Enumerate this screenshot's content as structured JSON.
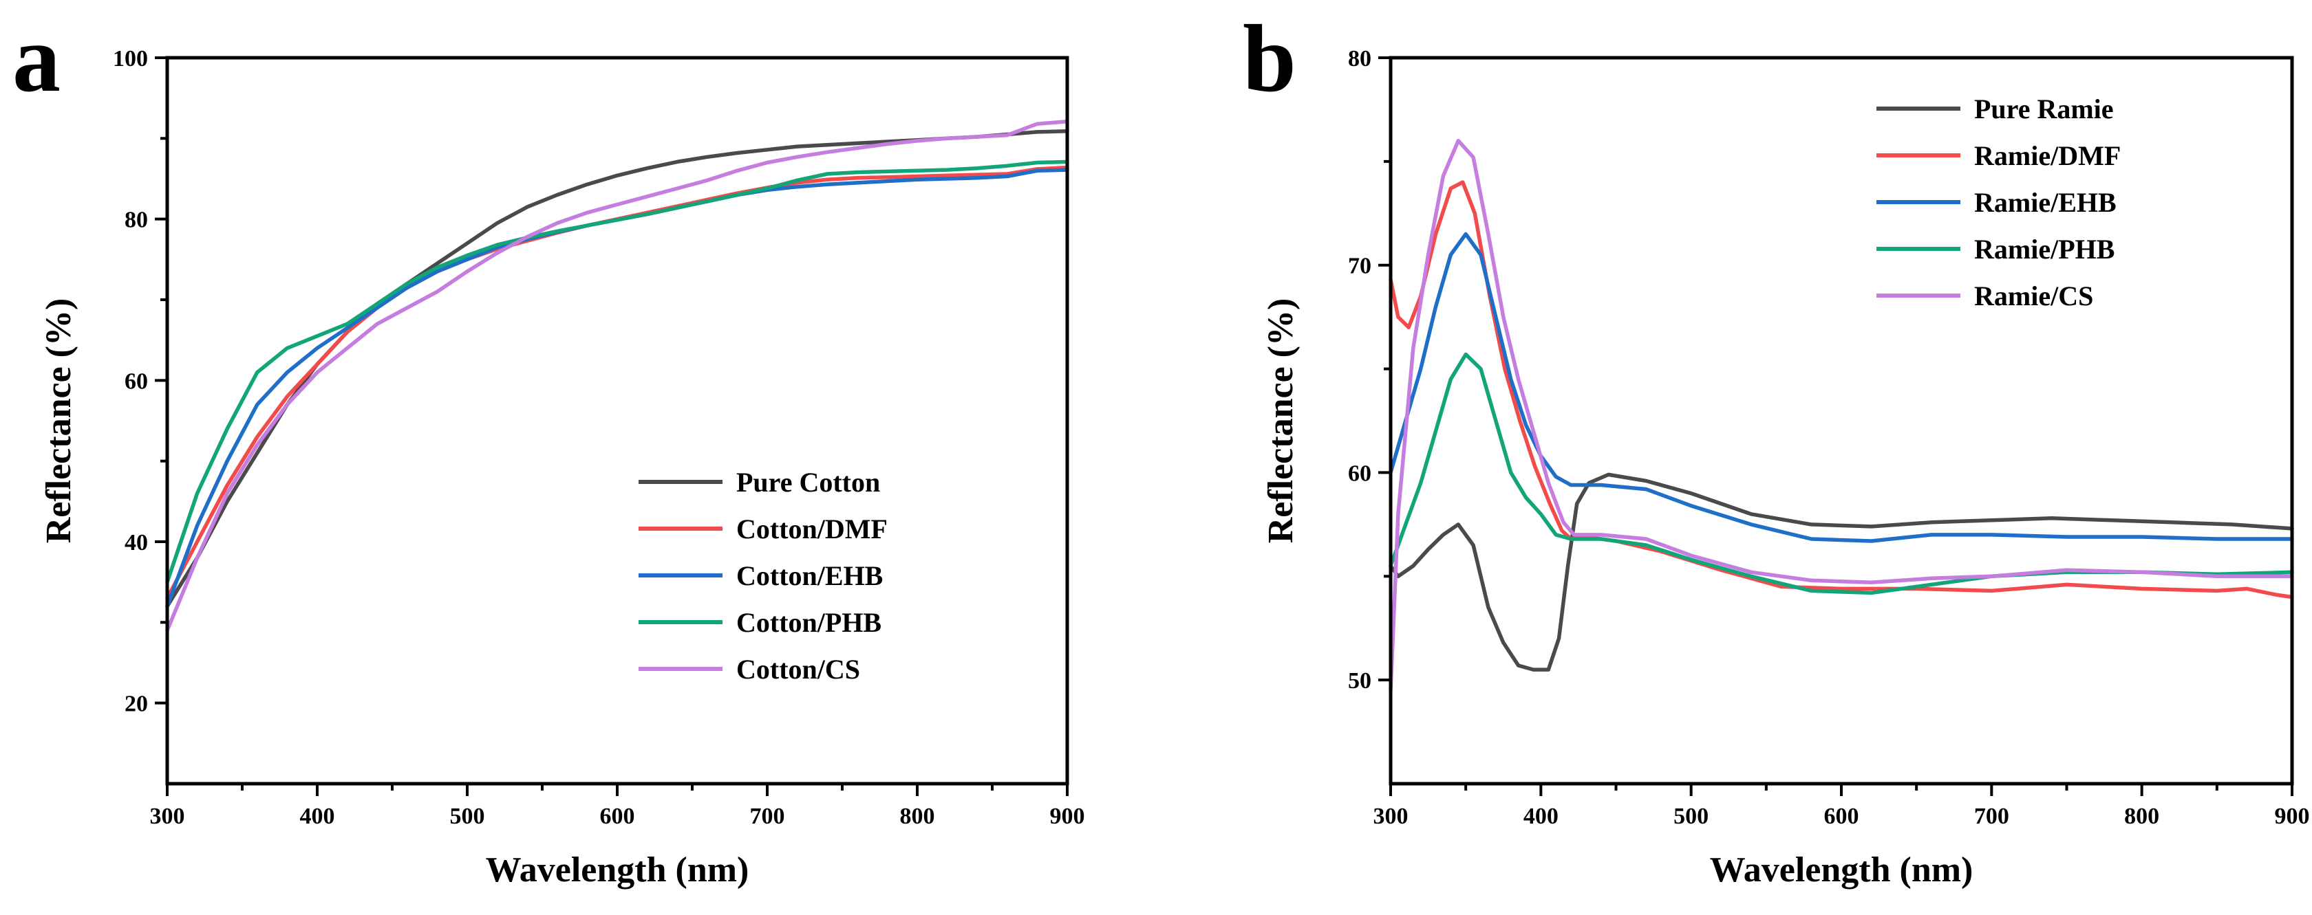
{
  "colors": {
    "gray": "#4a4a4a",
    "red": "#f14b4b",
    "blue": "#1f6fc9",
    "green": "#13a57a",
    "purple": "#c57de0"
  },
  "chart_data": [
    {
      "panel_label": "a",
      "type": "line",
      "xlabel": "Wavelength (nm)",
      "ylabel": "Reflectance (%)",
      "xlim": [
        300,
        900
      ],
      "ylim": [
        10,
        100
      ],
      "xticks": [
        "300",
        "400",
        "500",
        "600",
        "700",
        "800",
        "900"
      ],
      "yticks": [
        "20",
        "40",
        "60",
        "80",
        "100"
      ],
      "grid": false,
      "legend_position": "lower-right",
      "series": [
        {
          "name": "Pure Cotton",
          "color": "#4a4a4a",
          "x": [
            300,
            320,
            340,
            360,
            380,
            400,
            420,
            440,
            460,
            480,
            500,
            520,
            540,
            560,
            580,
            600,
            620,
            640,
            660,
            680,
            700,
            720,
            740,
            760,
            780,
            800,
            820,
            840,
            860,
            880,
            900
          ],
          "y": [
            32,
            38,
            45,
            51,
            57,
            62,
            66,
            69.5,
            72,
            74.5,
            77,
            79.5,
            81.5,
            83,
            84.3,
            85.4,
            86.3,
            87.1,
            87.7,
            88.2,
            88.6,
            89,
            89.2,
            89.4,
            89.6,
            89.8,
            90,
            90.2,
            90.5,
            90.8,
            90.9
          ]
        },
        {
          "name": "Cotton/DMF",
          "color": "#f14b4b",
          "x": [
            300,
            320,
            340,
            360,
            380,
            400,
            420,
            440,
            460,
            480,
            500,
            520,
            540,
            560,
            580,
            600,
            620,
            640,
            660,
            680,
            700,
            720,
            740,
            760,
            780,
            800,
            820,
            840,
            860,
            880,
            900
          ],
          "y": [
            33,
            40,
            47,
            53,
            58,
            62,
            66,
            69,
            71.5,
            73.5,
            75,
            76.3,
            77.3,
            78.3,
            79.2,
            80,
            80.8,
            81.6,
            82.4,
            83.2,
            83.9,
            84.5,
            84.9,
            85.1,
            85.2,
            85.3,
            85.4,
            85.5,
            85.6,
            86.2,
            86.4
          ]
        },
        {
          "name": "Cotton/EHB",
          "color": "#1f6fc9",
          "x": [
            300,
            320,
            340,
            360,
            380,
            400,
            420,
            440,
            460,
            480,
            500,
            520,
            540,
            560,
            580,
            600,
            620,
            640,
            660,
            680,
            700,
            720,
            740,
            760,
            780,
            800,
            820,
            840,
            860,
            880,
            900
          ],
          "y": [
            32,
            42,
            50,
            57,
            61,
            64,
            66.5,
            69,
            71.5,
            73.5,
            75,
            76.5,
            77.5,
            78.4,
            79.2,
            79.9,
            80.6,
            81.4,
            82.2,
            83,
            83.6,
            84,
            84.3,
            84.5,
            84.7,
            84.9,
            85,
            85.1,
            85.3,
            86,
            86.1
          ]
        },
        {
          "name": "Cotton/PHB",
          "color": "#13a57a",
          "x": [
            300,
            320,
            340,
            360,
            380,
            400,
            420,
            440,
            460,
            480,
            500,
            520,
            540,
            560,
            580,
            600,
            620,
            640,
            660,
            680,
            700,
            720,
            740,
            760,
            780,
            800,
            820,
            840,
            860,
            880,
            900
          ],
          "y": [
            35,
            46,
            54,
            61,
            64,
            65.5,
            67,
            69.5,
            72,
            74,
            75.5,
            76.8,
            77.7,
            78.5,
            79.2,
            79.9,
            80.6,
            81.4,
            82.2,
            83,
            83.8,
            84.8,
            85.6,
            85.8,
            85.9,
            86,
            86.1,
            86.3,
            86.6,
            87,
            87.1
          ]
        },
        {
          "name": "Cotton/CS",
          "color": "#c57de0",
          "x": [
            300,
            320,
            340,
            360,
            380,
            400,
            420,
            440,
            460,
            480,
            500,
            520,
            540,
            560,
            580,
            600,
            620,
            640,
            660,
            680,
            700,
            720,
            740,
            760,
            780,
            800,
            820,
            840,
            860,
            880,
            900
          ],
          "y": [
            29,
            38,
            46,
            52,
            57,
            61,
            64,
            67,
            69,
            71,
            73.5,
            75.8,
            77.8,
            79.5,
            80.8,
            81.8,
            82.8,
            83.8,
            84.8,
            86,
            87,
            87.7,
            88.3,
            88.8,
            89.3,
            89.7,
            90,
            90.2,
            90.4,
            91.8,
            92.1
          ]
        }
      ]
    },
    {
      "panel_label": "b",
      "type": "line",
      "xlabel": "Wavelength (nm)",
      "ylabel": "Reflectance (%)",
      "xlim": [
        300,
        900
      ],
      "ylim": [
        45,
        80
      ],
      "xticks": [
        "300",
        "400",
        "500",
        "600",
        "700",
        "800",
        "900"
      ],
      "yticks": [
        "50",
        "60",
        "70",
        "80"
      ],
      "grid": false,
      "legend_position": "top-right",
      "series": [
        {
          "name": "Pure Ramie",
          "color": "#4a4a4a",
          "x": [
            300,
            305,
            315,
            325,
            335,
            345,
            355,
            365,
            375,
            385,
            395,
            405,
            412,
            418,
            424,
            432,
            445,
            470,
            500,
            540,
            580,
            620,
            660,
            700,
            740,
            780,
            820,
            860,
            900
          ],
          "y": [
            55.5,
            55,
            55.5,
            56.3,
            57,
            57.5,
            56.5,
            53.5,
            51.8,
            50.7,
            50.5,
            50.5,
            52,
            55.5,
            58.5,
            59.5,
            59.9,
            59.6,
            59,
            58,
            57.5,
            57.4,
            57.6,
            57.7,
            57.8,
            57.7,
            57.6,
            57.5,
            57.3
          ]
        },
        {
          "name": "Ramie/DMF",
          "color": "#f14b4b",
          "x": [
            300,
            305,
            312,
            320,
            330,
            340,
            348,
            356,
            366,
            376,
            386,
            396,
            406,
            414,
            420,
            430,
            450,
            480,
            520,
            560,
            600,
            650,
            700,
            750,
            800,
            850,
            870,
            890,
            900
          ],
          "y": [
            69.3,
            67.5,
            67,
            68.5,
            71.5,
            73.7,
            74,
            72.5,
            68.5,
            65,
            62.5,
            60.3,
            58.5,
            57.2,
            56.8,
            56.9,
            56.7,
            56.2,
            55.3,
            54.5,
            54.4,
            54.4,
            54.3,
            54.6,
            54.4,
            54.3,
            54.4,
            54.1,
            54
          ]
        },
        {
          "name": "Ramie/EHB",
          "color": "#1f6fc9",
          "x": [
            300,
            310,
            320,
            330,
            340,
            350,
            360,
            370,
            380,
            390,
            400,
            410,
            420,
            440,
            470,
            500,
            540,
            580,
            620,
            660,
            700,
            750,
            800,
            850,
            900
          ],
          "y": [
            60,
            62.5,
            65,
            68,
            70.5,
            71.5,
            70.5,
            67.5,
            64.5,
            62.3,
            60.8,
            59.8,
            59.4,
            59.4,
            59.2,
            58.4,
            57.5,
            56.8,
            56.7,
            57,
            57,
            56.9,
            56.9,
            56.8,
            56.8
          ]
        },
        {
          "name": "Ramie/PHB",
          "color": "#13a57a",
          "x": [
            300,
            310,
            320,
            330,
            340,
            350,
            360,
            370,
            380,
            390,
            400,
            410,
            420,
            440,
            470,
            500,
            540,
            580,
            620,
            660,
            700,
            750,
            800,
            850,
            900
          ],
          "y": [
            55.5,
            57.5,
            59.5,
            62,
            64.5,
            65.7,
            65,
            62.5,
            60,
            58.8,
            58,
            57,
            56.8,
            56.8,
            56.5,
            55.8,
            55,
            54.3,
            54.2,
            54.6,
            55,
            55.2,
            55.2,
            55.1,
            55.2
          ]
        },
        {
          "name": "Ramie/CS",
          "color": "#c57de0",
          "x": [
            300,
            305,
            315,
            325,
            335,
            345,
            355,
            365,
            375,
            385,
            395,
            405,
            415,
            422,
            440,
            470,
            500,
            540,
            580,
            620,
            660,
            700,
            750,
            800,
            850,
            900
          ],
          "y": [
            49.5,
            58,
            66,
            70.5,
            74.3,
            76,
            75.2,
            71.5,
            67.5,
            64.5,
            62,
            59.5,
            57.6,
            57,
            57,
            56.8,
            56,
            55.2,
            54.8,
            54.7,
            54.9,
            55,
            55.3,
            55.2,
            55,
            55
          ]
        }
      ]
    }
  ]
}
